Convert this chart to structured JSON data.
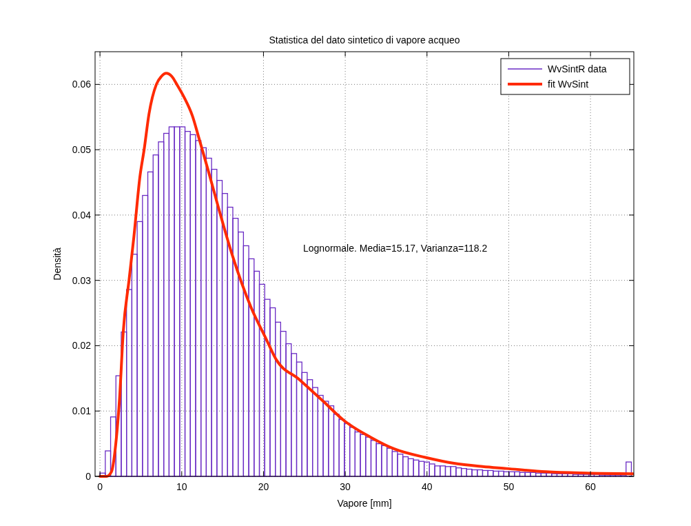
{
  "chart_data": {
    "type": "histogram",
    "title": "Statistica del dato sintetico di vapore acqueo",
    "xlabel": "Vapore [mm]",
    "ylabel": "Densità",
    "bins": [
      0,
      0.65,
      1.3,
      1.95,
      2.6,
      3.25,
      3.9,
      4.55,
      5.2,
      5.85,
      6.5,
      7.15,
      7.8,
      8.45,
      9.1,
      9.75,
      10.4,
      11.05,
      11.7,
      12.35,
      13,
      13.65,
      14.3,
      14.95,
      15.6,
      16.25,
      16.9,
      17.55,
      18.2,
      18.85,
      19.5,
      20.15,
      20.8,
      21.45,
      22.1,
      22.75,
      23.4,
      24.05,
      24.7,
      25.35,
      26,
      26.65,
      27.3,
      27.95,
      28.6,
      29.25,
      29.9,
      30.55,
      31.2,
      31.85,
      32.5,
      33.15,
      33.8,
      34.45,
      35.1,
      35.75,
      36.4,
      37.05,
      37.7,
      38.35,
      39,
      39.65,
      40.3,
      40.95,
      41.6,
      42.25,
      42.9,
      43.55,
      44.2,
      44.85,
      45.5,
      46.15,
      46.8,
      47.45,
      48.1,
      48.75,
      49.4,
      50.05,
      50.7,
      51.35,
      52,
      52.65,
      53.3,
      53.95,
      54.6,
      55.25,
      55.9,
      56.55,
      57.2,
      57.85,
      58.5,
      59.15,
      59.8,
      60.45,
      61.1,
      61.75,
      62.4,
      63.05,
      63.7,
      64.35,
      65
    ],
    "series": [
      {
        "name": "WvSintR data",
        "color": "#6a2bc4",
        "values": [
          0.0005,
          0.0039,
          0.0091,
          0.0154,
          0.0221,
          0.0286,
          0.034,
          0.039,
          0.043,
          0.0466,
          0.0492,
          0.0512,
          0.0525,
          0.0535,
          0.0535,
          0.0535,
          0.0528,
          0.0523,
          0.0514,
          0.0503,
          0.0487,
          0.047,
          0.0453,
          0.0433,
          0.0412,
          0.0395,
          0.0374,
          0.0353,
          0.0333,
          0.0314,
          0.0294,
          0.0271,
          0.0258,
          0.0236,
          0.0222,
          0.0203,
          0.0188,
          0.0175,
          0.0159,
          0.0148,
          0.0136,
          0.0124,
          0.0115,
          0.0108,
          0.0095,
          0.0087,
          0.0081,
          0.0075,
          0.0068,
          0.0064,
          0.006,
          0.0055,
          0.005,
          0.0047,
          0.0043,
          0.0038,
          0.0034,
          0.003,
          0.0027,
          0.0025,
          0.0023,
          0.0022,
          0.0019,
          0.0016,
          0.0016,
          0.0015,
          0.0015,
          0.0013,
          0.0012,
          0.0011,
          0.001,
          0.001,
          0.0009,
          0.0009,
          0.0008,
          0.0008,
          0.0007,
          0.0007,
          0.0007,
          0.0006,
          0.0006,
          0.0006,
          0.0005,
          0.0005,
          0.0005,
          0.0004,
          0.0004,
          0.0004,
          0.0004,
          0.0003,
          0.0003,
          0.0003,
          0.0003,
          0.0003,
          0.0002,
          0.0002,
          0.0002,
          0.0002,
          0.0002,
          0.0022
        ]
      },
      {
        "name": "fit WvSint",
        "type": "line",
        "color": "#ff2a00",
        "x": [
          0,
          0.8,
          1.4,
          2,
          2.4,
          2.85,
          3.55,
          4.15,
          4.9,
          5.4,
          6,
          6.9,
          7.5,
          8.1,
          8.8,
          9.4,
          10.3,
          11.3,
          12.1,
          13.2,
          14.5,
          16.2,
          18.5,
          20.3,
          21.5,
          24.4,
          27.3,
          29.9,
          33.1,
          36,
          39.8,
          43.3,
          46.8,
          49.7,
          54.6,
          59.5,
          65.2
        ],
        "values": [
          0,
          0,
          0.0007,
          0.0058,
          0.012,
          0.0222,
          0.03,
          0.0367,
          0.046,
          0.05,
          0.0555,
          0.06,
          0.0612,
          0.0617,
          0.0612,
          0.06,
          0.058,
          0.0552,
          0.0518,
          0.047,
          0.0411,
          0.0338,
          0.0258,
          0.0211,
          0.018,
          0.0148,
          0.0115,
          0.0085,
          0.006,
          0.0042,
          0.0029,
          0.002,
          0.0015,
          0.0012,
          0.0007,
          0.0005,
          0.0004
        ]
      }
    ],
    "xlim": [
      -0.6,
      65.3
    ],
    "ylim": [
      0,
      0.065
    ],
    "xticks": [
      0,
      10,
      20,
      30,
      40,
      50,
      60
    ],
    "yticks": [
      0,
      0.01,
      0.02,
      0.03,
      0.04,
      0.05,
      0.06
    ],
    "grid": true,
    "legend": "top right",
    "annotations": [
      "Lognormale. Media=15.17, Varianza=118.2"
    ]
  }
}
